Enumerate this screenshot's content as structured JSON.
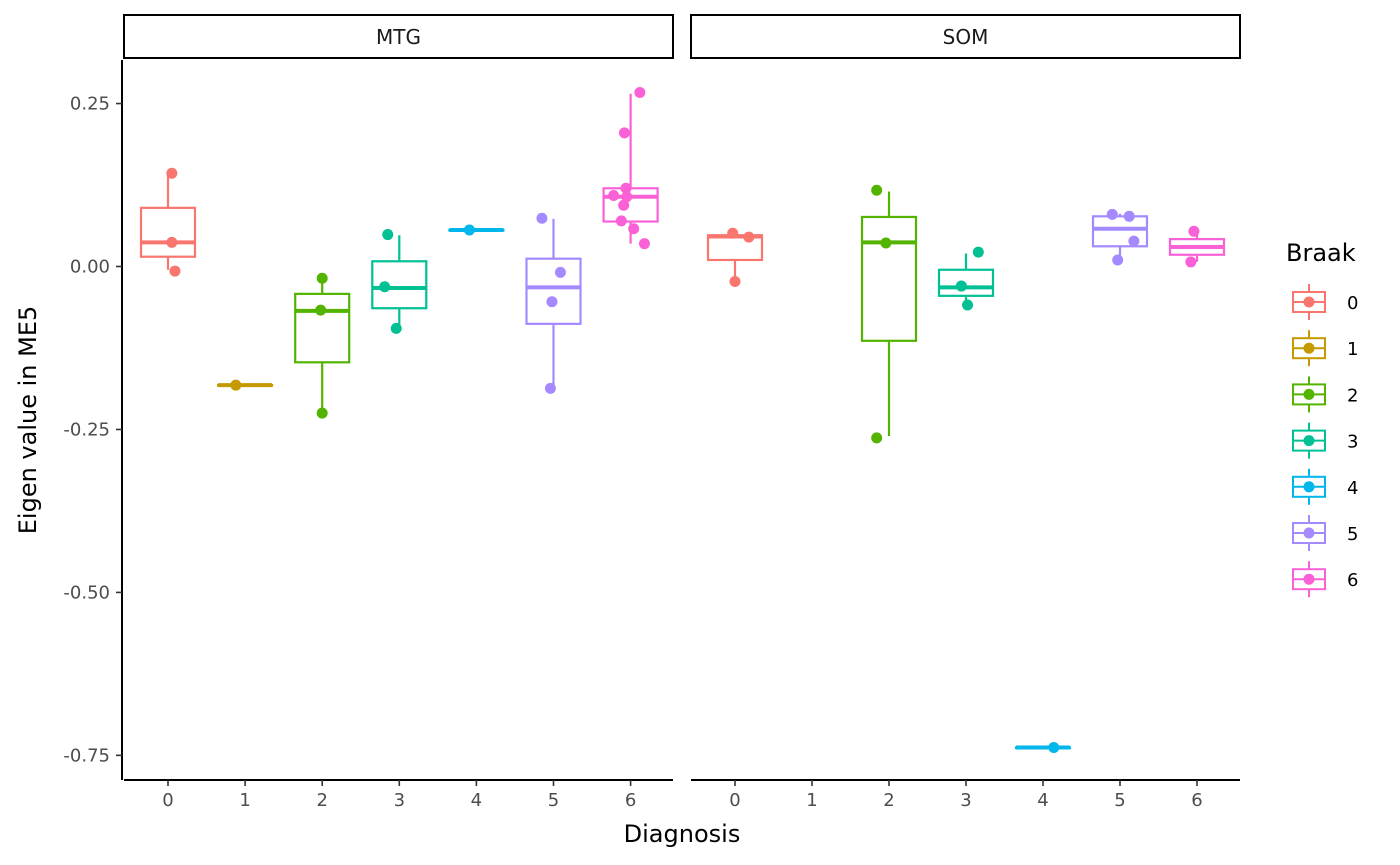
{
  "chart_data": {
    "type": "box",
    "facets": [
      "MTG",
      "SOM"
    ],
    "categories": [
      "0",
      "1",
      "2",
      "3",
      "4",
      "5",
      "6"
    ],
    "xlabel": "Diagnosis",
    "ylabel": "Eigen value in ME5",
    "ylim": [
      -0.79,
      0.315
    ],
    "yticks": [
      0.25,
      0.0,
      -0.25,
      -0.5,
      -0.75
    ],
    "ytick_labels": [
      "0.25",
      "0.00",
      "-0.25",
      "-0.50",
      "-0.75"
    ],
    "grid": false,
    "legend": {
      "title": "Braak",
      "position": "right",
      "entries": [
        {
          "label": "0",
          "color": "#F8766D"
        },
        {
          "label": "1",
          "color": "#C49A00"
        },
        {
          "label": "2",
          "color": "#53B400"
        },
        {
          "label": "3",
          "color": "#00C094"
        },
        {
          "label": "4",
          "color": "#00B6EB"
        },
        {
          "label": "5",
          "color": "#A58AFF"
        },
        {
          "label": "6",
          "color": "#FB61D7"
        }
      ]
    },
    "panels": [
      {
        "facet": "MTG",
        "boxes": [
          {
            "category": "0",
            "lower": -0.005,
            "q1": 0.015,
            "median": 0.037,
            "q3": 0.09,
            "upper": 0.14
          },
          {
            "category": "1",
            "lower": -0.182,
            "q1": -0.182,
            "median": -0.182,
            "q3": -0.182,
            "upper": -0.182
          },
          {
            "category": "2",
            "lower": -0.225,
            "q1": -0.147,
            "median": -0.068,
            "q3": -0.042,
            "upper": -0.02
          },
          {
            "category": "3",
            "lower": -0.095,
            "q1": -0.064,
            "median": -0.033,
            "q3": 0.008,
            "upper": 0.048
          },
          {
            "category": "4",
            "lower": 0.056,
            "q1": 0.056,
            "median": 0.056,
            "q3": 0.056,
            "upper": 0.056
          },
          {
            "category": "5",
            "lower": -0.185,
            "q1": -0.088,
            "median": -0.032,
            "q3": 0.012,
            "upper": 0.073
          },
          {
            "category": "6",
            "lower": 0.035,
            "q1": 0.069,
            "median": 0.107,
            "q3": 0.12,
            "upper": 0.265
          }
        ],
        "points": [
          {
            "category": "0",
            "jitter": 0.05,
            "y": 0.143
          },
          {
            "category": "0",
            "jitter": 0.05,
            "y": 0.037
          },
          {
            "category": "0",
            "jitter": 0.09,
            "y": -0.007
          },
          {
            "category": "1",
            "jitter": -0.12,
            "y": -0.182
          },
          {
            "category": "2",
            "jitter": 0.0,
            "y": -0.018
          },
          {
            "category": "2",
            "jitter": -0.02,
            "y": -0.067
          },
          {
            "category": "2",
            "jitter": 0.0,
            "y": -0.225
          },
          {
            "category": "3",
            "jitter": -0.15,
            "y": 0.049
          },
          {
            "category": "3",
            "jitter": -0.19,
            "y": -0.031
          },
          {
            "category": "3",
            "jitter": -0.04,
            "y": -0.095
          },
          {
            "category": "4",
            "jitter": -0.09,
            "y": 0.056
          },
          {
            "category": "5",
            "jitter": -0.15,
            "y": 0.074
          },
          {
            "category": "5",
            "jitter": 0.09,
            "y": -0.009
          },
          {
            "category": "5",
            "jitter": -0.02,
            "y": -0.054
          },
          {
            "category": "5",
            "jitter": -0.04,
            "y": -0.187
          },
          {
            "category": "6",
            "jitter": 0.12,
            "y": 0.267
          },
          {
            "category": "6",
            "jitter": -0.08,
            "y": 0.205
          },
          {
            "category": "6",
            "jitter": -0.06,
            "y": 0.12
          },
          {
            "category": "6",
            "jitter": -0.22,
            "y": 0.109
          },
          {
            "category": "6",
            "jitter": -0.05,
            "y": 0.107
          },
          {
            "category": "6",
            "jitter": -0.09,
            "y": 0.094
          },
          {
            "category": "6",
            "jitter": -0.12,
            "y": 0.07
          },
          {
            "category": "6",
            "jitter": 0.04,
            "y": 0.058
          },
          {
            "category": "6",
            "jitter": 0.18,
            "y": 0.035
          }
        ]
      },
      {
        "facet": "SOM",
        "boxes": [
          {
            "category": "0",
            "lower": -0.02,
            "q1": 0.01,
            "median": 0.046,
            "q3": 0.048,
            "upper": 0.05
          },
          {
            "category": "2",
            "lower": -0.26,
            "q1": -0.114,
            "median": 0.037,
            "q3": 0.076,
            "upper": 0.115
          },
          {
            "category": "3",
            "lower": -0.058,
            "q1": -0.045,
            "median": -0.032,
            "q3": -0.005,
            "upper": 0.02
          },
          {
            "category": "4",
            "lower": -0.738,
            "q1": -0.738,
            "median": -0.738,
            "q3": -0.738,
            "upper": -0.738
          },
          {
            "category": "5",
            "lower": 0.011,
            "q1": 0.031,
            "median": 0.058,
            "q3": 0.077,
            "upper": 0.081
          },
          {
            "category": "6",
            "lower": 0.007,
            "q1": 0.018,
            "median": 0.03,
            "q3": 0.042,
            "upper": 0.054
          }
        ],
        "points": [
          {
            "category": "0",
            "jitter": -0.03,
            "y": 0.051
          },
          {
            "category": "0",
            "jitter": 0.18,
            "y": 0.045
          },
          {
            "category": "0",
            "jitter": 0.0,
            "y": -0.023
          },
          {
            "category": "2",
            "jitter": -0.16,
            "y": 0.117
          },
          {
            "category": "2",
            "jitter": -0.04,
            "y": 0.036
          },
          {
            "category": "2",
            "jitter": -0.16,
            "y": -0.263
          },
          {
            "category": "3",
            "jitter": 0.16,
            "y": 0.022
          },
          {
            "category": "3",
            "jitter": -0.06,
            "y": -0.03
          },
          {
            "category": "3",
            "jitter": 0.02,
            "y": -0.059
          },
          {
            "category": "4",
            "jitter": 0.14,
            "y": -0.738
          },
          {
            "category": "5",
            "jitter": -0.1,
            "y": 0.08
          },
          {
            "category": "5",
            "jitter": 0.12,
            "y": 0.077
          },
          {
            "category": "5",
            "jitter": 0.18,
            "y": 0.039
          },
          {
            "category": "5",
            "jitter": -0.03,
            "y": 0.01
          },
          {
            "category": "6",
            "jitter": -0.04,
            "y": 0.054
          },
          {
            "category": "6",
            "jitter": -0.08,
            "y": 0.007
          }
        ]
      }
    ]
  }
}
